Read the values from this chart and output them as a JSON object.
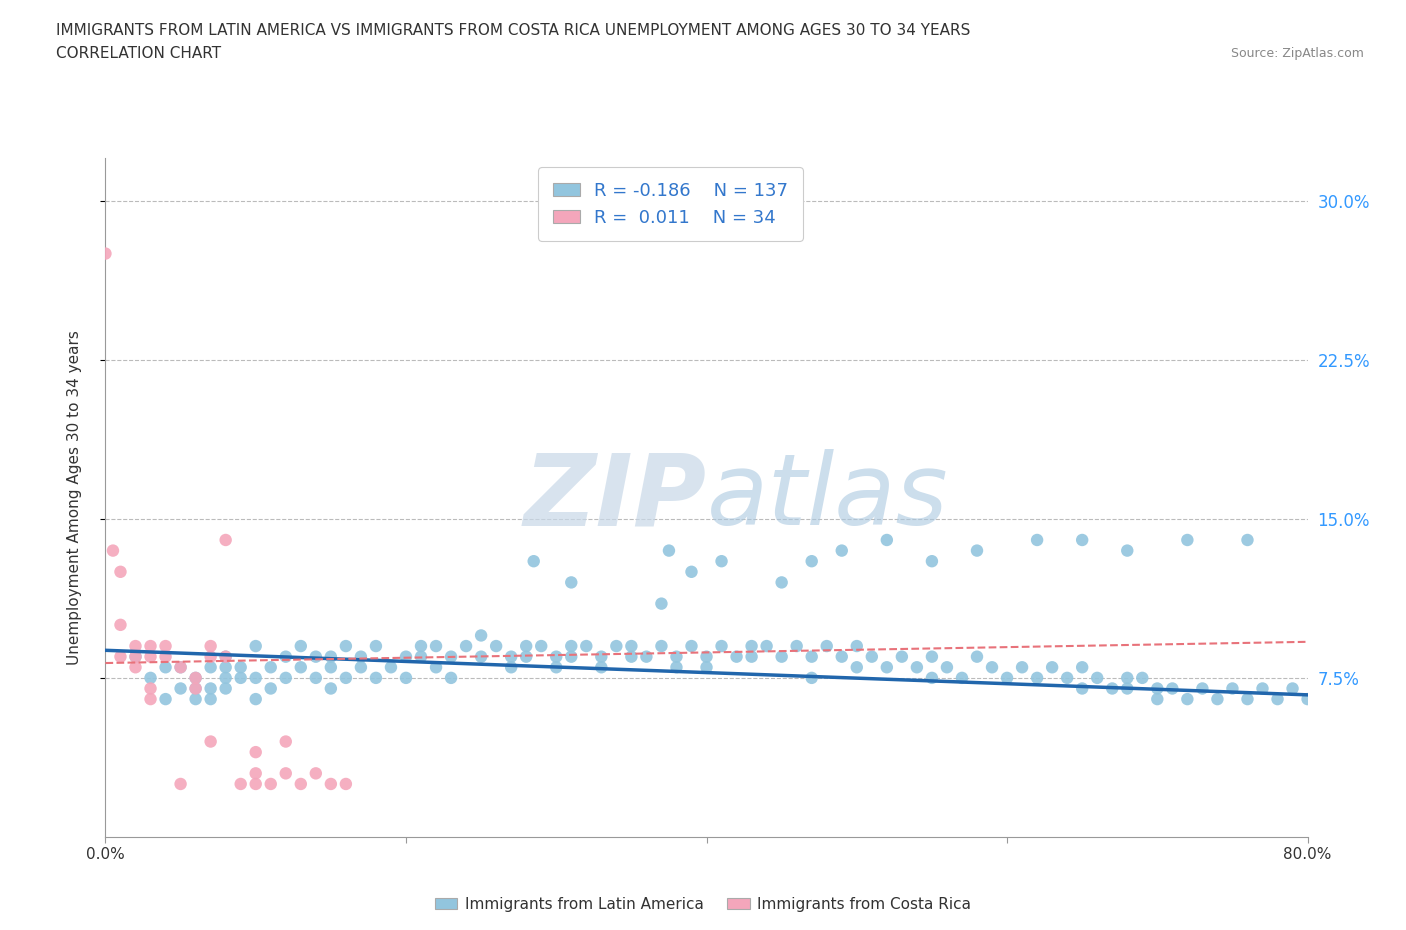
{
  "title_line1": "IMMIGRANTS FROM LATIN AMERICA VS IMMIGRANTS FROM COSTA RICA UNEMPLOYMENT AMONG AGES 30 TO 34 YEARS",
  "title_line2": "CORRELATION CHART",
  "source_text": "Source: ZipAtlas.com",
  "ylabel": "Unemployment Among Ages 30 to 34 years",
  "xlim": [
    0.0,
    0.8
  ],
  "ylim": [
    0.0,
    0.32
  ],
  "yticks": [
    0.075,
    0.15,
    0.225,
    0.3
  ],
  "ytick_labels": [
    "7.5%",
    "15.0%",
    "22.5%",
    "30.0%"
  ],
  "xticks": [
    0.0,
    0.2,
    0.4,
    0.6,
    0.8
  ],
  "xtick_labels": [
    "0.0%",
    "",
    "",
    "",
    "80.0%"
  ],
  "blue_R": -0.186,
  "blue_N": 137,
  "pink_R": 0.011,
  "pink_N": 34,
  "blue_color": "#92c5de",
  "pink_color": "#f4a6bb",
  "blue_line_color": "#2166ac",
  "pink_line_color": "#e8727a",
  "background_color": "#ffffff",
  "grid_color": "#bbbbbb",
  "watermark_color": "#d8e8f0",
  "legend_label_blue": "Immigrants from Latin America",
  "legend_label_pink": "Immigrants from Costa Rica",
  "blue_x": [
    0.02,
    0.03,
    0.04,
    0.04,
    0.05,
    0.05,
    0.06,
    0.06,
    0.06,
    0.07,
    0.07,
    0.07,
    0.08,
    0.08,
    0.08,
    0.08,
    0.09,
    0.09,
    0.1,
    0.1,
    0.1,
    0.11,
    0.11,
    0.12,
    0.12,
    0.13,
    0.13,
    0.14,
    0.14,
    0.15,
    0.15,
    0.15,
    0.16,
    0.16,
    0.17,
    0.17,
    0.18,
    0.18,
    0.19,
    0.2,
    0.2,
    0.21,
    0.21,
    0.22,
    0.22,
    0.23,
    0.23,
    0.24,
    0.25,
    0.25,
    0.26,
    0.27,
    0.27,
    0.28,
    0.28,
    0.29,
    0.3,
    0.3,
    0.31,
    0.31,
    0.32,
    0.33,
    0.33,
    0.34,
    0.35,
    0.35,
    0.36,
    0.37,
    0.38,
    0.38,
    0.39,
    0.4,
    0.4,
    0.41,
    0.42,
    0.43,
    0.43,
    0.44,
    0.45,
    0.46,
    0.47,
    0.47,
    0.48,
    0.49,
    0.5,
    0.5,
    0.51,
    0.52,
    0.53,
    0.54,
    0.55,
    0.55,
    0.56,
    0.57,
    0.58,
    0.59,
    0.6,
    0.61,
    0.62,
    0.63,
    0.64,
    0.65,
    0.65,
    0.66,
    0.67,
    0.68,
    0.68,
    0.69,
    0.7,
    0.7,
    0.71,
    0.72,
    0.73,
    0.74,
    0.75,
    0.76,
    0.77,
    0.78,
    0.79,
    0.8,
    0.285,
    0.31,
    0.375,
    0.37,
    0.39,
    0.41,
    0.45,
    0.47,
    0.49,
    0.52,
    0.55,
    0.58,
    0.62,
    0.65,
    0.68,
    0.72,
    0.76
  ],
  "blue_y": [
    0.085,
    0.075,
    0.08,
    0.065,
    0.07,
    0.08,
    0.065,
    0.07,
    0.075,
    0.065,
    0.07,
    0.08,
    0.075,
    0.08,
    0.085,
    0.07,
    0.075,
    0.08,
    0.065,
    0.075,
    0.09,
    0.07,
    0.08,
    0.085,
    0.075,
    0.08,
    0.09,
    0.075,
    0.085,
    0.07,
    0.08,
    0.085,
    0.075,
    0.09,
    0.08,
    0.085,
    0.075,
    0.09,
    0.08,
    0.085,
    0.075,
    0.09,
    0.085,
    0.08,
    0.09,
    0.085,
    0.075,
    0.09,
    0.085,
    0.095,
    0.09,
    0.085,
    0.08,
    0.09,
    0.085,
    0.09,
    0.085,
    0.08,
    0.09,
    0.085,
    0.09,
    0.085,
    0.08,
    0.09,
    0.085,
    0.09,
    0.085,
    0.09,
    0.085,
    0.08,
    0.09,
    0.085,
    0.08,
    0.09,
    0.085,
    0.09,
    0.085,
    0.09,
    0.085,
    0.09,
    0.085,
    0.075,
    0.09,
    0.085,
    0.08,
    0.09,
    0.085,
    0.08,
    0.085,
    0.08,
    0.075,
    0.085,
    0.08,
    0.075,
    0.085,
    0.08,
    0.075,
    0.08,
    0.075,
    0.08,
    0.075,
    0.07,
    0.08,
    0.075,
    0.07,
    0.075,
    0.07,
    0.075,
    0.07,
    0.065,
    0.07,
    0.065,
    0.07,
    0.065,
    0.07,
    0.065,
    0.07,
    0.065,
    0.07,
    0.065,
    0.13,
    0.12,
    0.135,
    0.11,
    0.125,
    0.13,
    0.12,
    0.13,
    0.135,
    0.14,
    0.13,
    0.135,
    0.14,
    0.14,
    0.135,
    0.14,
    0.14
  ],
  "pink_x": [
    0.0,
    0.005,
    0.01,
    0.01,
    0.01,
    0.02,
    0.02,
    0.02,
    0.03,
    0.03,
    0.03,
    0.03,
    0.04,
    0.04,
    0.05,
    0.05,
    0.06,
    0.06,
    0.07,
    0.07,
    0.07,
    0.08,
    0.08,
    0.09,
    0.1,
    0.1,
    0.1,
    0.11,
    0.12,
    0.12,
    0.13,
    0.14,
    0.15,
    0.16
  ],
  "pink_y": [
    0.275,
    0.135,
    0.125,
    0.1,
    0.085,
    0.09,
    0.08,
    0.085,
    0.09,
    0.085,
    0.065,
    0.07,
    0.09,
    0.085,
    0.08,
    0.025,
    0.07,
    0.075,
    0.09,
    0.085,
    0.045,
    0.14,
    0.085,
    0.025,
    0.025,
    0.03,
    0.04,
    0.025,
    0.03,
    0.045,
    0.025,
    0.03,
    0.025,
    0.025
  ],
  "blue_trend_x": [
    0.0,
    0.8
  ],
  "blue_trend_y": [
    0.088,
    0.067
  ],
  "pink_trend_x": [
    0.0,
    0.8
  ],
  "pink_trend_y": [
    0.082,
    0.092
  ]
}
